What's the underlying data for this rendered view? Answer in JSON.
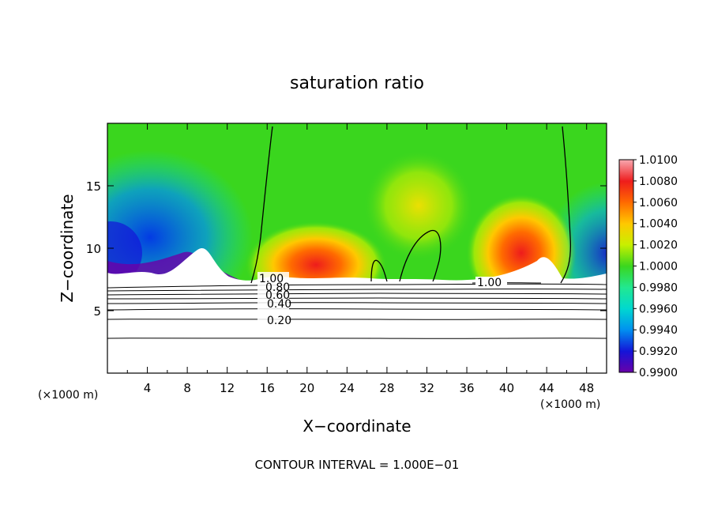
{
  "chart_data": {
    "type": "heatmap",
    "title": "saturation ratio",
    "xlabel": "X−coordinate",
    "ylabel": "Z−coordinate",
    "x_unit_left": "(×1000 m)",
    "x_unit_right": "(×1000 m)",
    "xlim": [
      0,
      50
    ],
    "ylim": [
      0,
      20
    ],
    "x_ticks": [
      4,
      8,
      12,
      16,
      20,
      24,
      28,
      32,
      36,
      40,
      44,
      48
    ],
    "y_ticks": [
      5,
      10,
      15
    ],
    "colorbar": {
      "levels": [
        "1.0100",
        "1.0080",
        "1.0060",
        "1.0040",
        "1.0020",
        "1.0000",
        "0.9980",
        "0.9960",
        "0.9940",
        "0.9920",
        "0.9900"
      ],
      "colors": [
        "#f8a8b0",
        "#ee1c1c",
        "#ff6a00",
        "#ffc800",
        "#c8f000",
        "#3ad61e",
        "#22e890",
        "#00d8d0",
        "#0090f0",
        "#1414d8",
        "#6a00a8"
      ]
    },
    "contour_labels": [
      "1.00",
      "0.80",
      "0.60",
      "0.40",
      "0.20",
      "1.00"
    ],
    "contour_interval": "CONTOUR INTERVAL = 1.000E−01",
    "grid": false
  }
}
